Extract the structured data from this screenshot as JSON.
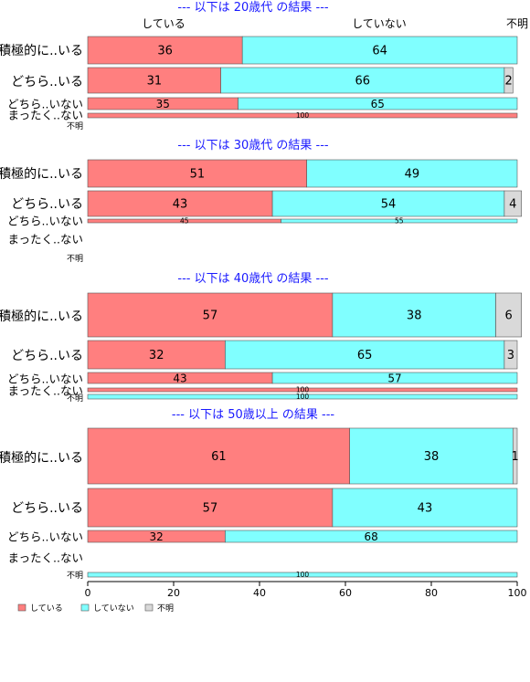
{
  "chart_data": {
    "type": "bar",
    "orientation": "horizontal-stacked-percent",
    "column_labels": [
      "している",
      "していない",
      "不明"
    ],
    "legend": {
      "placement": "bottom-left",
      "entries": [
        "している",
        "していない",
        "不明"
      ]
    },
    "colors": {
      "している": "#ff7f7f",
      "していない": "#80ffff",
      "不明": "#d9d9d9"
    },
    "xaxis": {
      "ticks": [
        "0",
        "20",
        "40",
        "60",
        "80",
        "100"
      ],
      "xlim": [
        0,
        100
      ]
    },
    "panels": [
      {
        "title": "--- 以下は 20歳代 の結果 ---",
        "rows": [
          {
            "label": "積極的に..いる",
            "values": [
              36,
              64,
              0
            ],
            "labels": [
              "36",
              "64",
              ""
            ]
          },
          {
            "label": "どちら..いる",
            "values": [
              31,
              66,
              2
            ],
            "labels": [
              "31",
              "66",
              "2"
            ]
          },
          {
            "label": "どちら..いない",
            "values": [
              35,
              65,
              0
            ],
            "labels": [
              "35",
              "65",
              ""
            ]
          },
          {
            "label": "まったく..ない",
            "values": [
              100,
              0,
              0
            ],
            "labels": [
              "100",
              "",
              ""
            ]
          },
          {
            "label": "不明",
            "values": [
              0,
              0,
              0
            ],
            "labels": [
              "",
              "",
              ""
            ]
          }
        ]
      },
      {
        "title": "--- 以下は 30歳代 の結果 ---",
        "rows": [
          {
            "label": "積極的に..いる",
            "values": [
              51,
              49,
              0
            ],
            "labels": [
              "51",
              "49",
              ""
            ]
          },
          {
            "label": "どちら..いる",
            "values": [
              43,
              54,
              4
            ],
            "labels": [
              "43",
              "54",
              "4"
            ]
          },
          {
            "label": "どちら..いない",
            "values": [
              45,
              55,
              0
            ],
            "labels": [
              "45",
              "55",
              ""
            ]
          },
          {
            "label": "まったく..ない",
            "values": [
              0,
              0,
              0
            ],
            "labels": [
              "",
              "",
              ""
            ]
          },
          {
            "label": "不明",
            "values": [
              0,
              0,
              0
            ],
            "labels": [
              "",
              "",
              ""
            ]
          }
        ]
      },
      {
        "title": "--- 以下は 40歳代 の結果 ---",
        "rows": [
          {
            "label": "積極的に..いる",
            "values": [
              57,
              38,
              6
            ],
            "labels": [
              "57",
              "38",
              "6"
            ]
          },
          {
            "label": "どちら..いる",
            "values": [
              32,
              65,
              3
            ],
            "labels": [
              "32",
              "65",
              "3"
            ]
          },
          {
            "label": "どちら..いない",
            "values": [
              43,
              57,
              0
            ],
            "labels": [
              "43",
              "57",
              ""
            ]
          },
          {
            "label": "まったく..ない",
            "values": [
              100,
              0,
              0
            ],
            "labels": [
              "100",
              "",
              ""
            ]
          },
          {
            "label": "不明",
            "values": [
              0,
              100,
              0
            ],
            "labels": [
              "",
              "100",
              ""
            ]
          }
        ]
      },
      {
        "title": "--- 以下は 50歳以上 の結果 ---",
        "rows": [
          {
            "label": "積極的に..いる",
            "values": [
              61,
              38,
              1
            ],
            "labels": [
              "61",
              "38",
              "1"
            ]
          },
          {
            "label": "どちら..いる",
            "values": [
              57,
              43,
              0
            ],
            "labels": [
              "57",
              "43",
              ""
            ]
          },
          {
            "label": "どちら..いない",
            "values": [
              32,
              68,
              0
            ],
            "labels": [
              "32",
              "68",
              ""
            ]
          },
          {
            "label": "まったく..ない",
            "values": [
              0,
              0,
              0
            ],
            "labels": [
              "",
              "",
              ""
            ]
          },
          {
            "label": "不明",
            "values": [
              0,
              100,
              0
            ],
            "labels": [
              "",
              "100",
              ""
            ]
          }
        ]
      }
    ]
  }
}
